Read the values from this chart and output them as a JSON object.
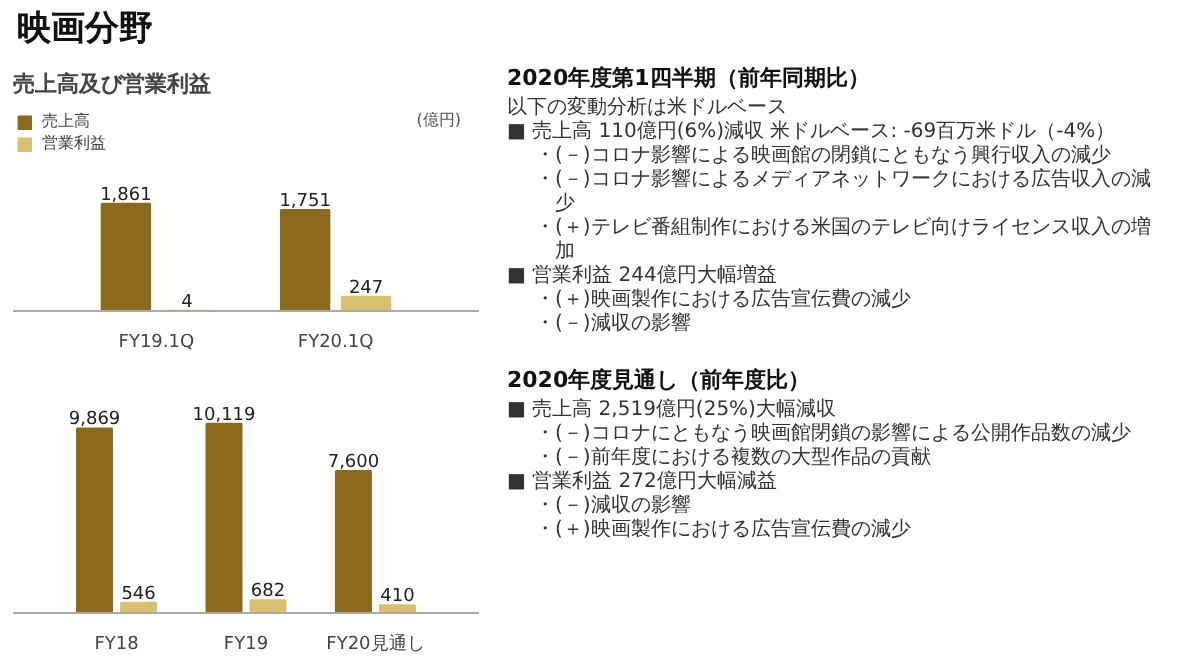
{
  "chart_data": [
    {
      "type": "other",
      "title": "映画分野"
    },
    {
      "type": "bar",
      "title": "売上高及び営業利益",
      "annotations": [
        "(億円)"
      ],
      "categories": [
        "FY19.1Q",
        "FY20.1Q"
      ],
      "legend": "top left",
      "grid": false,
      "series": [
        {
          "name": "売上高",
          "color": "#8b6a1e",
          "values": [
            1861,
            1751
          ],
          "value_labels": [
            "1,861",
            "1,751"
          ]
        },
        {
          "name": "営業利益",
          "color": "#d9c06e",
          "values": [
            4,
            247
          ],
          "value_labels": [
            "4",
            "247"
          ]
        }
      ]
    },
    {
      "type": "bar",
      "categories": [
        "FY18",
        "FY19",
        "FY20見通し"
      ],
      "grid": false,
      "series": [
        {
          "color": "#8b6a1e",
          "values": [
            9869,
            10119,
            7600
          ],
          "value_labels": [
            "9,869",
            "10,119",
            "7,600"
          ]
        },
        {
          "color": "#d9c06e",
          "values": [
            546,
            682,
            410
          ],
          "value_labels": [
            "546",
            "682",
            "410"
          ]
        }
      ]
    },
    {
      "type": "other",
      "title": "2020年度第1四半期（前年同期比）",
      "annotations": [
        "以下の変動分析は米ドルベース",
        "■ 売上高 110億円(6%)減収 米ドルベース: -69百万米ドル（-4%）",
        "・(－)コロナ影響による映画館の閉鎖にともなう興行収入の減少",
        "・(－)コロナ影響によるメディアネットワークにおける広告収入の減少",
        "・(＋)テレビ番組制作における米国のテレビ向けライセンス収入の増加",
        "■ 営業利益 244億円大幅増益",
        "・(＋)映画製作における広告宣伝費の減少",
        "・(－)減収の影響"
      ]
    },
    {
      "type": "other",
      "title": "2020年度見通し（前年度比）",
      "annotations": [
        "■ 売上高 2,519億円(25%)大幅減収",
        "・(－)コロナにともなう映画館閉鎖の影響による公開作品数の減少",
        "・(－)前年度における複数の大型作品の貢献",
        "■ 営業利益 272億円大幅減益",
        "・(－)減収の影響",
        "・(＋)映画製作における広告宣伝費の減少"
      ]
    }
  ]
}
